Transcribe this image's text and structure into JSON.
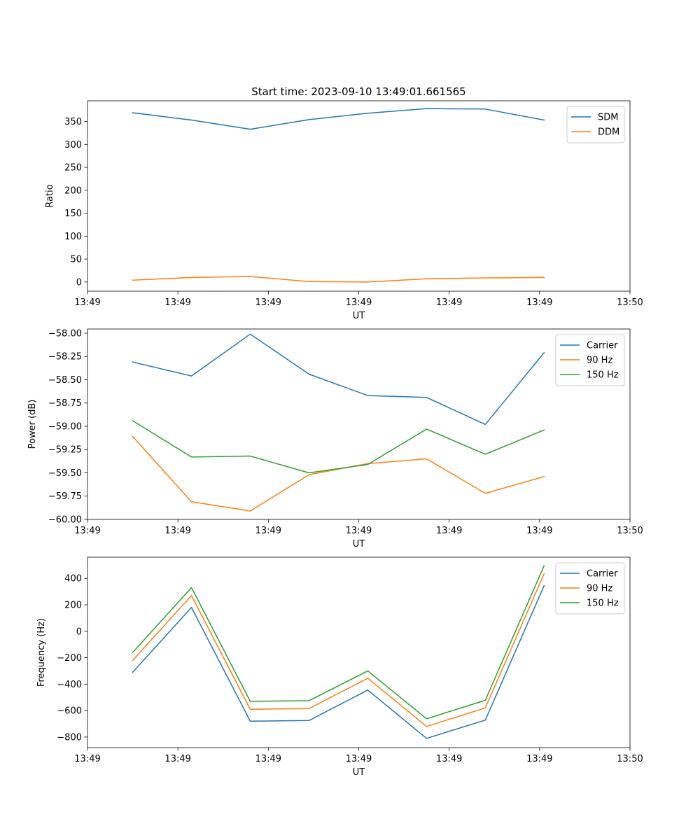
{
  "figure": {
    "title": "Start time: 2023-09-10 13:49:01.661565"
  },
  "colors": {
    "blue": "#1f77b4",
    "orange": "#ff7f0e",
    "green": "#2ca02c",
    "axis": "#000000",
    "legend_border": "#cccccc"
  },
  "chart_data": [
    {
      "type": "line",
      "title": "Start time: 2023-09-10 13:49:01.661565",
      "xlabel": "UT",
      "ylabel": "Ratio",
      "x": [
        0.5,
        1.15,
        1.8,
        2.45,
        3.1,
        3.75,
        4.4,
        5.05
      ],
      "xlim": [
        0,
        6
      ],
      "xticks": [
        0,
        1,
        2,
        3,
        4,
        5,
        6
      ],
      "xtick_labels": [
        "13:49",
        "13:49",
        "13:49",
        "13:49",
        "13:49",
        "13:49",
        "13:50"
      ],
      "ylim": [
        -20,
        395
      ],
      "yticks": [
        0,
        50,
        100,
        150,
        200,
        250,
        300,
        350
      ],
      "ytick_labels": [
        "0",
        "50",
        "100",
        "150",
        "200",
        "250",
        "300",
        "350"
      ],
      "legend_position": "top-right",
      "series": [
        {
          "name": "SDM",
          "color": "#1f77b4",
          "values": [
            369,
            353,
            333,
            354,
            368,
            378,
            377,
            353
          ]
        },
        {
          "name": "DDM",
          "color": "#ff7f0e",
          "values": [
            4,
            10,
            12,
            1,
            0,
            7,
            9,
            10
          ]
        }
      ]
    },
    {
      "type": "line",
      "title": "",
      "xlabel": "UT",
      "ylabel": "Power (dB)",
      "x": [
        0.5,
        1.15,
        1.8,
        2.45,
        3.1,
        3.75,
        4.4,
        5.05
      ],
      "xlim": [
        0,
        6
      ],
      "xticks": [
        0,
        1,
        2,
        3,
        4,
        5,
        6
      ],
      "xtick_labels": [
        "13:49",
        "13:49",
        "13:49",
        "13:49",
        "13:49",
        "13:49",
        "13:50"
      ],
      "ylim": [
        -60.0,
        -57.955
      ],
      "yticks": [
        -60.0,
        -59.75,
        -59.5,
        -59.25,
        -59.0,
        -58.75,
        -58.5,
        -58.25,
        -58.0
      ],
      "ytick_labels": [
        "−60.00",
        "−59.75",
        "−59.50",
        "−59.25",
        "−59.00",
        "−58.75",
        "−58.50",
        "−58.25",
        "−58.00"
      ],
      "legend_position": "top-right",
      "series": [
        {
          "name": "Carrier",
          "color": "#1f77b4",
          "values": [
            -58.31,
            -58.46,
            -58.01,
            -58.44,
            -58.67,
            -58.69,
            -58.98,
            -58.21
          ]
        },
        {
          "name": "90 Hz",
          "color": "#ff7f0e",
          "values": [
            -59.11,
            -59.81,
            -59.91,
            -59.52,
            -59.4,
            -59.35,
            -59.72,
            -59.54
          ]
        },
        {
          "name": "150 Hz",
          "color": "#2ca02c",
          "values": [
            -58.94,
            -59.33,
            -59.32,
            -59.5,
            -59.41,
            -59.03,
            -59.3,
            -59.04
          ]
        }
      ]
    },
    {
      "type": "line",
      "title": "",
      "xlabel": "UT",
      "ylabel": "Frequency (Hz)",
      "x": [
        0.5,
        1.15,
        1.8,
        2.45,
        3.1,
        3.75,
        4.4,
        5.05
      ],
      "xlim": [
        0,
        6
      ],
      "xticks": [
        0,
        1,
        2,
        3,
        4,
        5,
        6
      ],
      "xtick_labels": [
        "13:49",
        "13:49",
        "13:49",
        "13:49",
        "13:49",
        "13:49",
        "13:50"
      ],
      "ylim": [
        -880,
        560
      ],
      "yticks": [
        -800,
        -600,
        -400,
        -200,
        0,
        200,
        400
      ],
      "ytick_labels": [
        "−800",
        "−600",
        "−400",
        "−200",
        "0",
        "200",
        "400"
      ],
      "legend_position": "top-right",
      "series": [
        {
          "name": "Carrier",
          "color": "#1f77b4",
          "values": [
            -310,
            180,
            -680,
            -675,
            -445,
            -810,
            -672,
            345
          ]
        },
        {
          "name": "90 Hz",
          "color": "#ff7f0e",
          "values": [
            -220,
            270,
            -590,
            -585,
            -355,
            -720,
            -580,
            435
          ]
        },
        {
          "name": "150 Hz",
          "color": "#2ca02c",
          "values": [
            -160,
            330,
            -530,
            -525,
            -300,
            -662,
            -522,
            495
          ]
        }
      ]
    }
  ]
}
